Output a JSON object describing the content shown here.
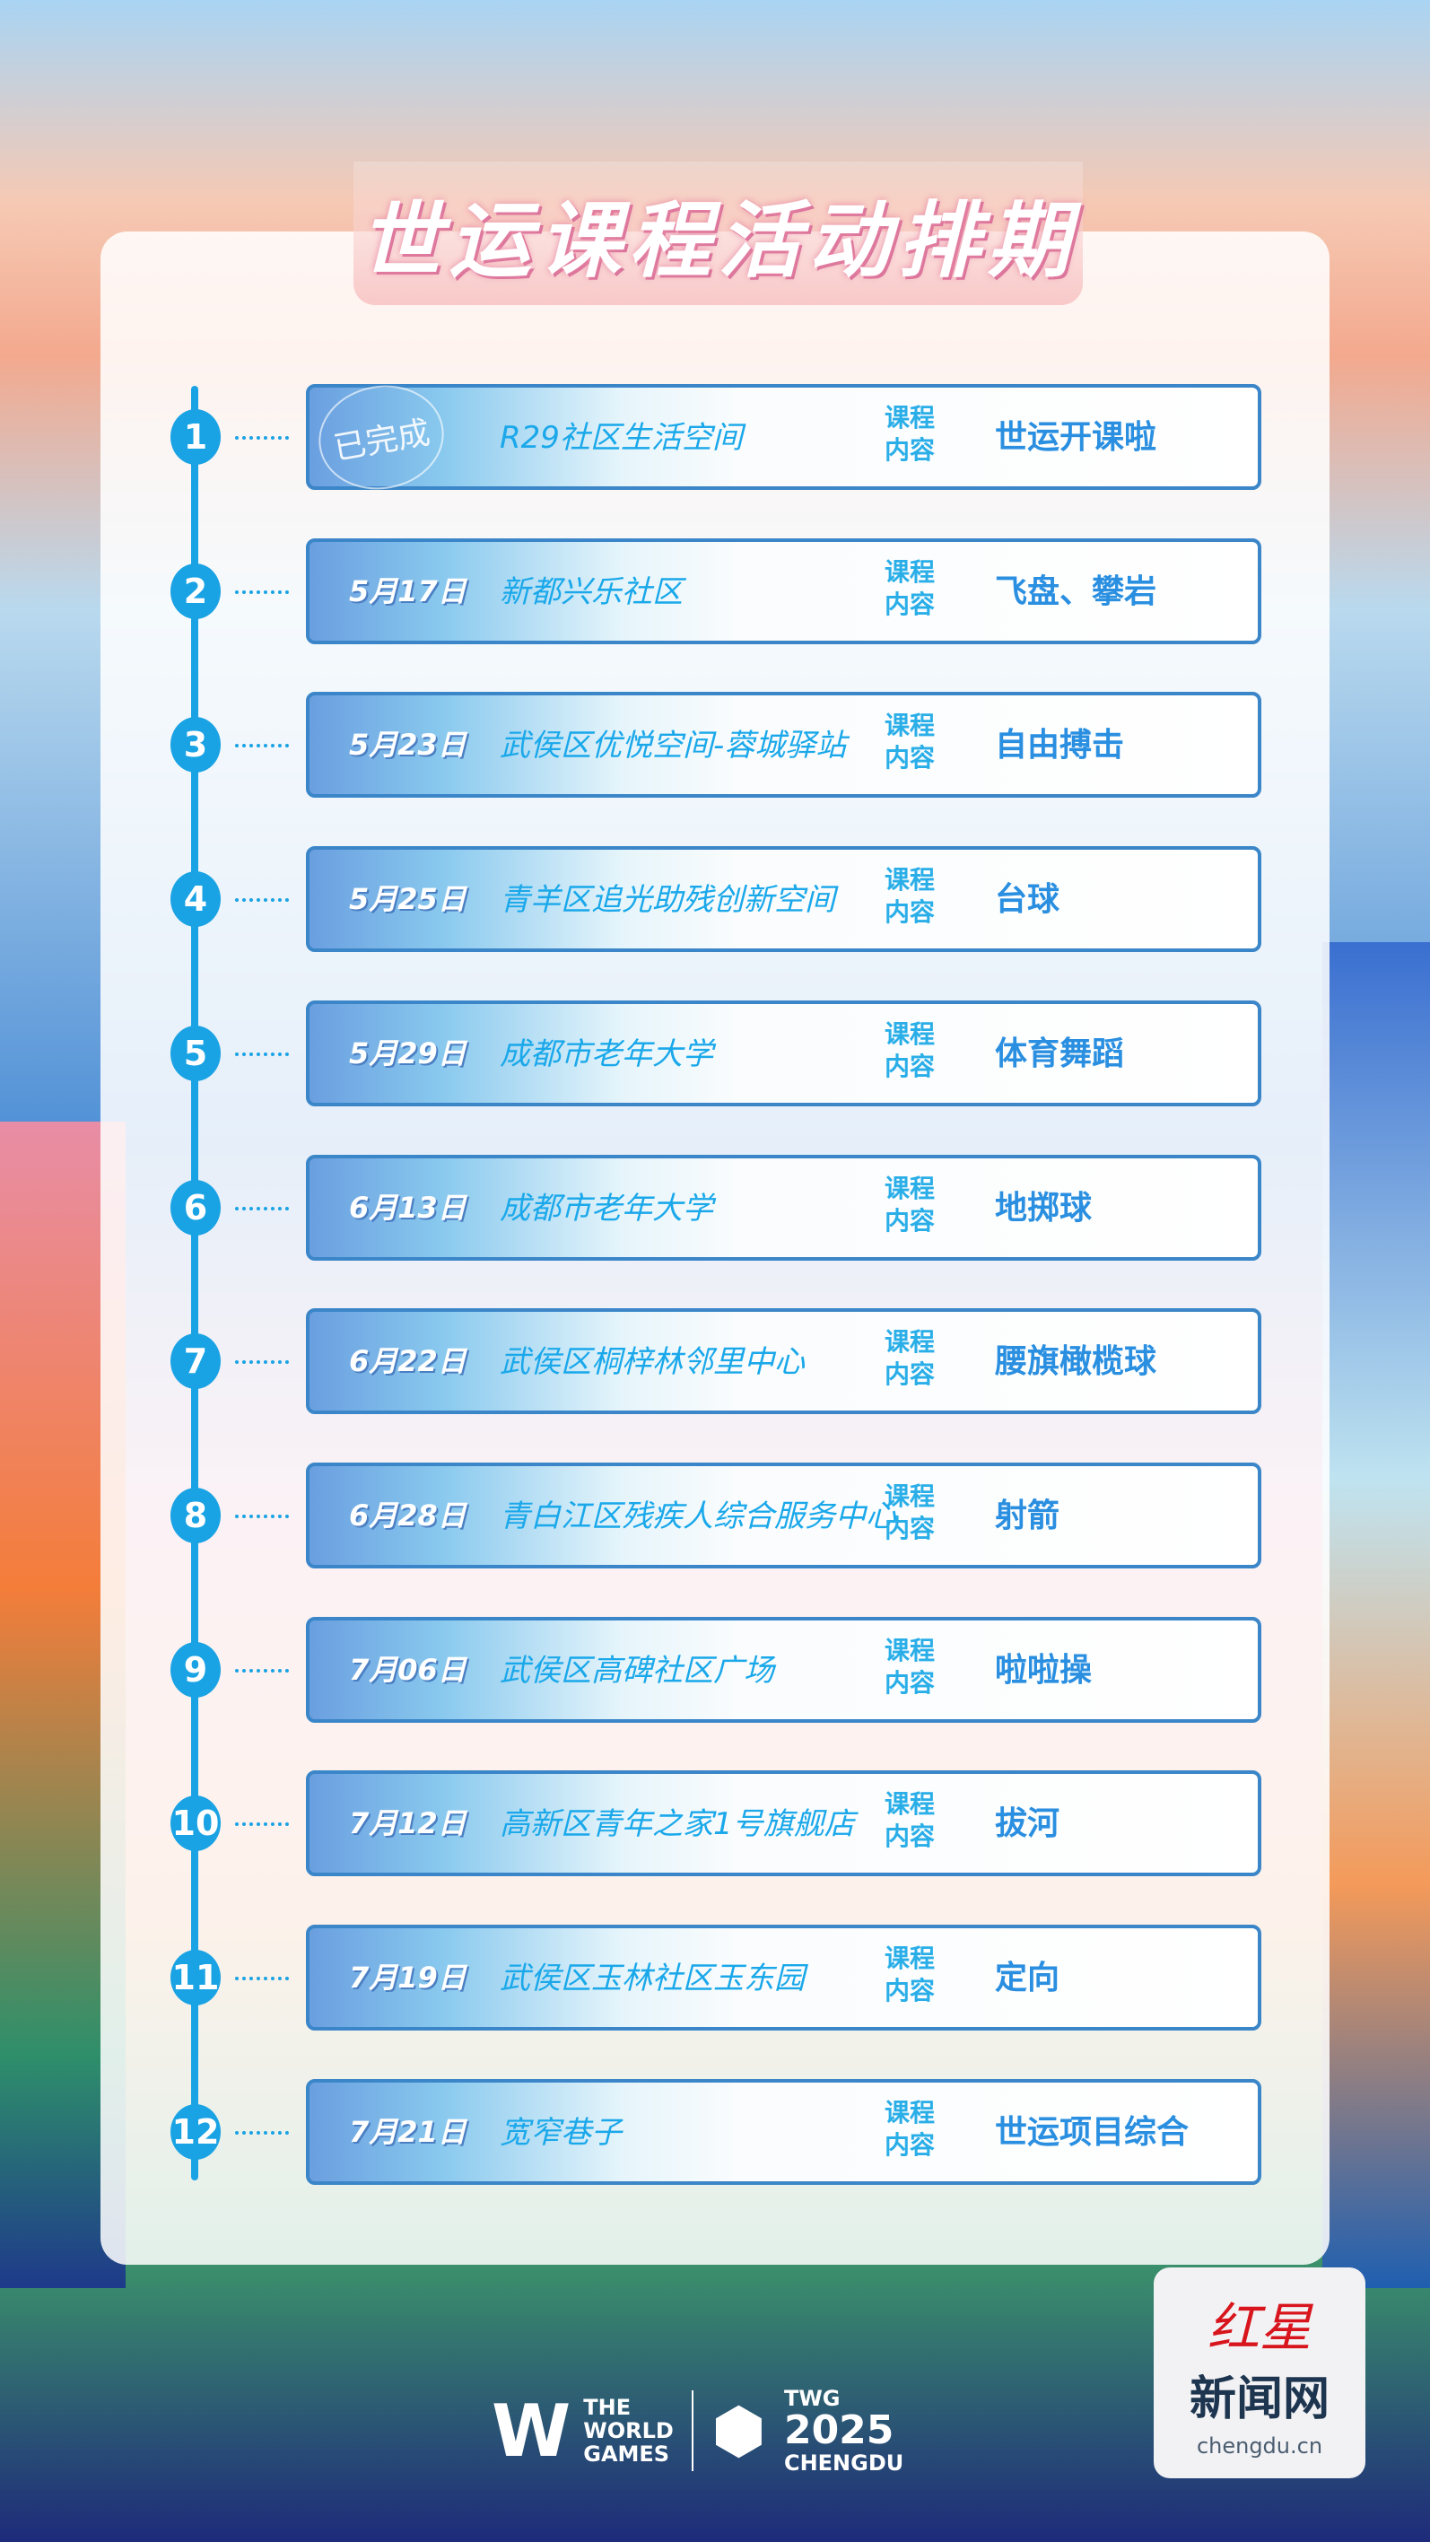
{
  "title": "世运课程活动排期",
  "label": "课程内容",
  "completed_stamp": "已完成",
  "rows": [
    {
      "num": "1",
      "date": "",
      "venue": "R29社区生活空间",
      "course": "世运开课啦",
      "completed": true
    },
    {
      "num": "2",
      "date": "5月17日",
      "venue": "新都兴乐社区",
      "course": "飞盘、攀岩"
    },
    {
      "num": "3",
      "date": "5月23日",
      "venue": "武侯区优悦空间-蓉城驿站",
      "course": "自由搏击"
    },
    {
      "num": "4",
      "date": "5月25日",
      "venue": "青羊区追光助残创新空间",
      "course": "台球"
    },
    {
      "num": "5",
      "date": "5月29日",
      "venue": "成都市老年大学",
      "course": "体育舞蹈"
    },
    {
      "num": "6",
      "date": "6月13日",
      "venue": "成都市老年大学",
      "course": "地掷球"
    },
    {
      "num": "7",
      "date": "6月22日",
      "venue": "武侯区桐梓林邻里中心",
      "course": "腰旗橄榄球"
    },
    {
      "num": "8",
      "date": "6月28日",
      "venue": "青白江区残疾人综合服务中心",
      "course": "射箭"
    },
    {
      "num": "9",
      "date": "7月06日",
      "venue": "武侯区高碑社区广场",
      "course": "啦啦操"
    },
    {
      "num": "10",
      "date": "7月12日",
      "venue": "高新区青年之家1号旗舰店",
      "course": "拔河"
    },
    {
      "num": "11",
      "date": "7月19日",
      "venue": "武侯区玉林社区玉东园",
      "course": "定向"
    },
    {
      "num": "12",
      "date": "7月21日",
      "venue": "宽窄巷子",
      "course": "世运项目综合"
    }
  ],
  "footer": {
    "wg_line1": "THE",
    "wg_line2": "WORLD",
    "wg_line3": "GAMES",
    "twg_line1": "TWG",
    "twg_line2": "2025",
    "twg_line3": "CHENGDU"
  },
  "logo": {
    "red": "红星",
    "main": "新闻网",
    "url": "chengdu.cn"
  },
  "colors": {
    "accent": "#1aa3e4",
    "card_border": "#3b86c8"
  }
}
